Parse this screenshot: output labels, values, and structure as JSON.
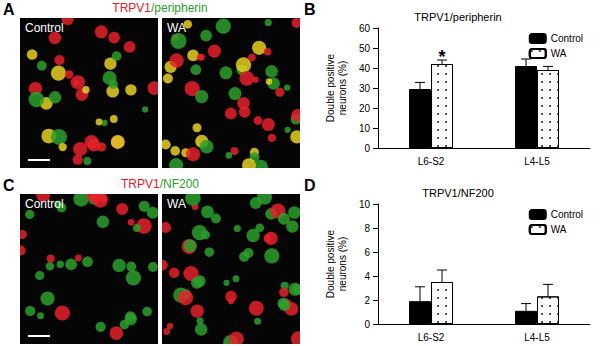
{
  "figure": {
    "image_panels": [
      {
        "label": "A",
        "title_parts": [
          {
            "text": "TRPV1",
            "color": "#e8202a"
          },
          {
            "text": "/peripherin",
            "color": "#2aa02a"
          }
        ],
        "images": [
          "Control",
          "WA"
        ]
      },
      {
        "label": "C",
        "title_parts": [
          {
            "text": "TRPV1",
            "color": "#e8202a"
          },
          {
            "text": "/NF200",
            "color": "#2aa02a"
          }
        ],
        "images": [
          "Control",
          "WA"
        ]
      }
    ],
    "chart_labels": [
      "B",
      "D"
    ]
  },
  "chart_data": [
    {
      "type": "bar",
      "title": "TRPV1/peripherin",
      "ylabel": "Double positive\nneurons (%)",
      "categories": [
        "L6-S2",
        "L4-L5"
      ],
      "series": [
        {
          "name": "Control",
          "color": "#000000",
          "values": [
            29.5,
            41
          ],
          "errors": [
            3.3,
            3.5
          ]
        },
        {
          "name": "WA",
          "color": "#ffffff",
          "marker": "dots",
          "values": [
            42,
            39
          ],
          "errors": [
            2,
            1.8
          ]
        }
      ],
      "ylim": [
        0,
        60
      ],
      "yticks": [
        0,
        10,
        20,
        30,
        40,
        50,
        60
      ],
      "grid": false,
      "legend": "upper right",
      "annotations": [
        {
          "text": "*",
          "category": "L6-S2",
          "series": "WA"
        }
      ]
    },
    {
      "type": "bar",
      "title": "TRPV1/NF200",
      "ylabel": "Double positive\nneurons (%)",
      "categories": [
        "L6-S2",
        "L4-L5"
      ],
      "series": [
        {
          "name": "Control",
          "color": "#000000",
          "values": [
            1.9,
            1.1
          ],
          "errors": [
            1.2,
            0.6
          ]
        },
        {
          "name": "WA",
          "color": "#ffffff",
          "marker": "dots",
          "values": [
            3.5,
            2.3
          ],
          "errors": [
            1.0,
            1.0
          ]
        }
      ],
      "ylim": [
        0,
        10
      ],
      "yticks": [
        0,
        2,
        4,
        6,
        8,
        10
      ],
      "grid": false,
      "legend": "upper right"
    }
  ]
}
